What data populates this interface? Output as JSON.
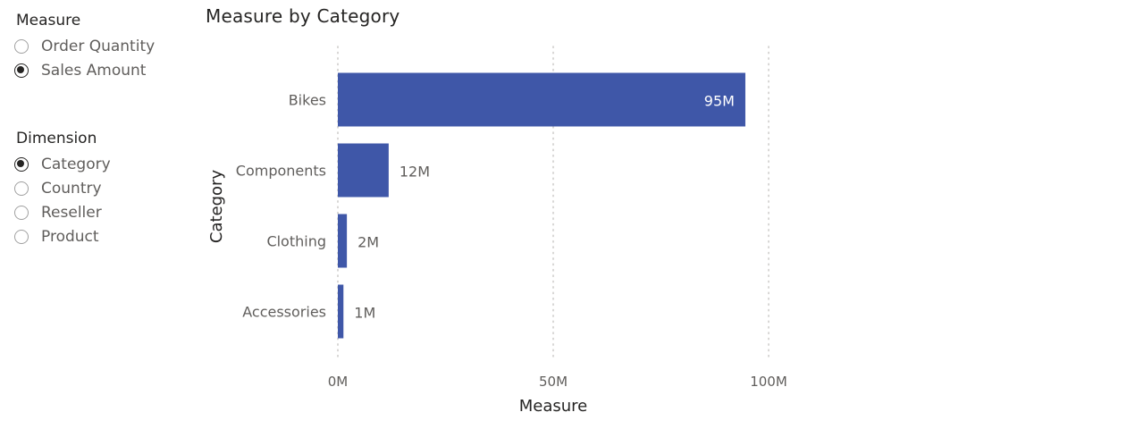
{
  "measure_slicer": {
    "title": "Measure",
    "options": [
      {
        "label": "Order Quantity",
        "selected": false
      },
      {
        "label": "Sales Amount",
        "selected": true
      }
    ]
  },
  "dimension_slicer": {
    "title": "Dimension",
    "options": [
      {
        "label": "Category",
        "selected": true
      },
      {
        "label": "Country",
        "selected": false
      },
      {
        "label": "Reseller",
        "selected": false
      },
      {
        "label": "Product",
        "selected": false
      }
    ]
  },
  "colors": {
    "bar": "#3f57a8",
    "gridline": "#c8c6c4",
    "inside_label": "#ffffff",
    "outside_label": "#605e5c"
  },
  "chart_data": {
    "type": "bar",
    "orientation": "horizontal",
    "title": "Measure by Category",
    "xlabel": "Measure",
    "ylabel": "Category",
    "categories": [
      "Bikes",
      "Components",
      "Clothing",
      "Accessories"
    ],
    "values": [
      94.6,
      11.8,
      2.1,
      1.3
    ],
    "data_labels": [
      "95M",
      "12M",
      "2M",
      "1M"
    ],
    "xlim": [
      0,
      100
    ],
    "x_ticks": [
      0,
      50,
      100
    ],
    "x_tick_labels": [
      "0M",
      "50M",
      "100M"
    ],
    "grid": true
  }
}
